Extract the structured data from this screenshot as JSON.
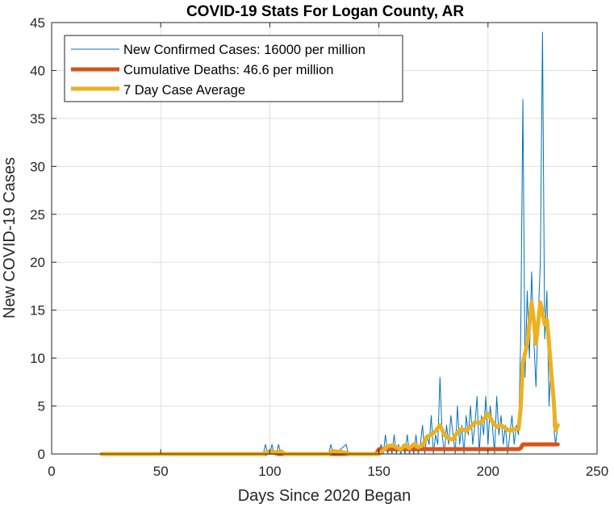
{
  "chart_data": {
    "type": "line",
    "title": "COVID-19 Stats For Logan County, AR",
    "xlabel": "Days Since 2020 Began",
    "ylabel": "New COVID-19 Cases",
    "xlim": [
      0,
      250
    ],
    "ylim": [
      0,
      45
    ],
    "xticks": [
      0,
      50,
      100,
      150,
      200,
      250
    ],
    "yticks": [
      0,
      5,
      10,
      15,
      20,
      25,
      30,
      35,
      40,
      45
    ],
    "grid": true,
    "legend_position": "top-left",
    "series": [
      {
        "name": "New Confirmed Cases: 16000 per million",
        "color": "#0072BD",
        "style": "thin",
        "x": [
          23,
          97,
          98,
          99,
          100,
          101,
          102,
          103,
          104,
          105,
          127,
          128,
          129,
          130,
          135,
          136,
          137,
          150,
          151,
          152,
          153,
          154,
          155,
          156,
          157,
          158,
          159,
          160,
          161,
          162,
          163,
          164,
          165,
          166,
          167,
          168,
          169,
          170,
          171,
          172,
          173,
          174,
          175,
          176,
          177,
          178,
          179,
          180,
          181,
          182,
          183,
          184,
          185,
          186,
          187,
          188,
          189,
          190,
          191,
          192,
          193,
          194,
          195,
          196,
          197,
          198,
          199,
          200,
          201,
          202,
          203,
          204,
          205,
          206,
          207,
          208,
          209,
          210,
          211,
          212,
          213,
          214,
          215,
          216,
          217,
          218,
          219,
          220,
          221,
          222,
          223,
          224,
          225,
          226,
          227,
          228,
          229,
          230,
          231,
          232
        ],
        "y": [
          0,
          0,
          1,
          0,
          0,
          1,
          0,
          0,
          1,
          0,
          0,
          1,
          0,
          0,
          1,
          0,
          0,
          0,
          1,
          0,
          2,
          0,
          1,
          0,
          2,
          0,
          1,
          0,
          1,
          0,
          2,
          0,
          1,
          0,
          2,
          0,
          1,
          3,
          0,
          2,
          1,
          4,
          0,
          2,
          1,
          8,
          2,
          0,
          3,
          1,
          4,
          2,
          0,
          5,
          1,
          3,
          0,
          4,
          2,
          5,
          1,
          3,
          6,
          0,
          4,
          2,
          6,
          1,
          5,
          3,
          0,
          6,
          2,
          4,
          1,
          3,
          0,
          2,
          4,
          1,
          3,
          2,
          12,
          37,
          8,
          17,
          10,
          19,
          12,
          7,
          14,
          20,
          44,
          12,
          17,
          5,
          10,
          3,
          1,
          3
        ]
      },
      {
        "name": "Cumulative Deaths: 46.6 per million",
        "color": "#D95319",
        "style": "thick",
        "x": [
          23,
          98,
          99,
          102,
          103,
          104,
          105,
          148,
          149,
          150,
          214,
          215,
          216,
          232
        ],
        "y": [
          0,
          0,
          0.15,
          0.15,
          0.05,
          0,
          0,
          0,
          0.1,
          0.5,
          0.5,
          0.6,
          1,
          1
        ]
      },
      {
        "name": "7 Day Case Average",
        "color": "#EDB120",
        "style": "thick",
        "x": [
          23,
          97,
          99,
          101,
          103,
          105,
          107,
          127,
          129,
          133,
          137,
          140,
          150,
          152,
          154,
          156,
          158,
          160,
          162,
          164,
          166,
          168,
          170,
          172,
          174,
          176,
          178,
          180,
          182,
          184,
          186,
          188,
          190,
          192,
          194,
          196,
          198,
          200,
          202,
          204,
          206,
          208,
          210,
          212,
          214,
          215,
          216,
          218,
          220,
          221,
          222,
          224,
          225,
          226,
          227,
          228,
          229,
          230,
          231,
          232
        ],
        "y": [
          0,
          0,
          0.2,
          0.3,
          0.1,
          0.3,
          0,
          0,
          0.3,
          0.2,
          0,
          0,
          0,
          0.4,
          0.8,
          0.9,
          0.7,
          0.5,
          0.9,
          0.6,
          1.0,
          0.7,
          0.9,
          1.8,
          2.0,
          2.4,
          3.0,
          2.0,
          1.6,
          1.5,
          2.3,
          2.6,
          2.4,
          2.8,
          3.3,
          3.2,
          3.6,
          4.2,
          3.4,
          2.8,
          3.0,
          2.7,
          2.4,
          2.6,
          2.6,
          4.8,
          9.5,
          11.5,
          15.8,
          14.0,
          11.5,
          15.8,
          14.8,
          13.5,
          14.0,
          11.5,
          8.5,
          6.0,
          2.5,
          3.0
        ]
      }
    ]
  }
}
